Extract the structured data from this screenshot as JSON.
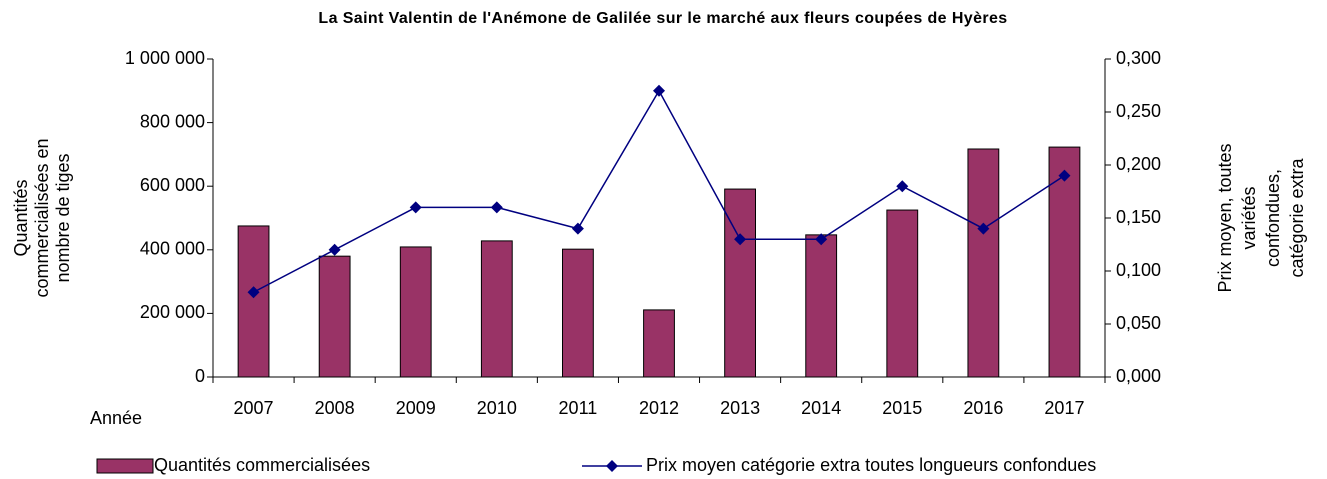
{
  "chart_data": {
    "type": "bar_line",
    "title": "La Saint Valentin de l'Anémone de Galilée sur le marché aux fleurs coupées de Hyères",
    "xlabel": "Année",
    "ylabel_lines": [
      "Quantités",
      "commercialisées en",
      "nombre de tiges"
    ],
    "y2label_lines": [
      "Prix moyen, toutes",
      "variétés",
      "confondues,",
      "catégorie extra"
    ],
    "categories": [
      "2007",
      "2008",
      "2009",
      "2010",
      "2011",
      "2012",
      "2013",
      "2014",
      "2015",
      "2016",
      "2017"
    ],
    "series": [
      {
        "name": "Quantités commercialisées",
        "type": "bar",
        "color": "#993366",
        "values": [
          475000,
          380000,
          409000,
          428000,
          402000,
          211000,
          591000,
          447000,
          525000,
          717000,
          723000
        ]
      },
      {
        "name": "Prix moyen catégorie extra toutes longueurs confondues",
        "type": "line",
        "axis": "y2",
        "color": "#000080",
        "values": [
          0.08,
          0.12,
          0.16,
          0.16,
          0.14,
          0.27,
          0.13,
          0.13,
          0.18,
          0.14,
          0.19
        ]
      }
    ],
    "ylim": [
      0,
      1000000
    ],
    "yticks": [
      0,
      {
        "value": 200000,
        "label": "200 000"
      },
      {
        "value": 400000,
        "label": "400 000"
      },
      {
        "value": 600000,
        "label": "600 000"
      },
      {
        "value": 800000,
        "label": "800 000"
      },
      {
        "value": 1000000,
        "label": "1 000 000"
      }
    ],
    "y2lim": [
      0,
      0.3
    ],
    "y2ticks": [
      {
        "value": 0,
        "label": "0,000"
      },
      {
        "value": 0.05,
        "label": "0,050"
      },
      {
        "value": 0.1,
        "label": "0,100"
      },
      {
        "value": 0.15,
        "label": "0,150"
      },
      {
        "value": 0.2,
        "label": "0,200"
      },
      {
        "value": 0.25,
        "label": "0,250"
      },
      {
        "value": 0.3,
        "label": "0,300"
      }
    ],
    "grid": false
  }
}
